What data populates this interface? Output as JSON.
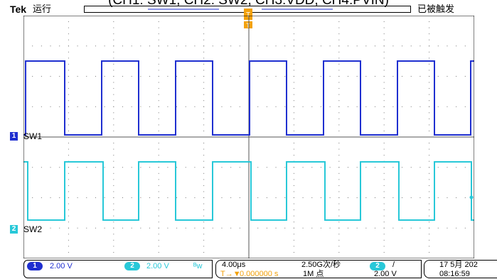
{
  "caption": "(CH1: SW1, CH2: SW2, CH3:VDD, CH4:PVIN)",
  "topbar": {
    "brand": "Tek",
    "run_status": "运行",
    "trigger_status": "已被触发"
  },
  "channels": [
    {
      "id": "1",
      "label": "SW1",
      "color": "#1f2fd0"
    },
    {
      "id": "2",
      "label": "SW2",
      "color": "#28c8d8"
    }
  ],
  "status": {
    "ch1_scale": "2.00 V",
    "ch2_scale": "2.00 V",
    "bandwidth_symbol": "ᴮw",
    "timebase": "4.00μs",
    "trigger_position": "0.000000 s",
    "sample_rate": "2.50G次/秒",
    "record_length": "1M 点",
    "trigger_channel": "2",
    "trigger_slope": "/",
    "trigger_level": "2.00 V",
    "date": "17 5月 202",
    "time": "08:16:59"
  }
}
